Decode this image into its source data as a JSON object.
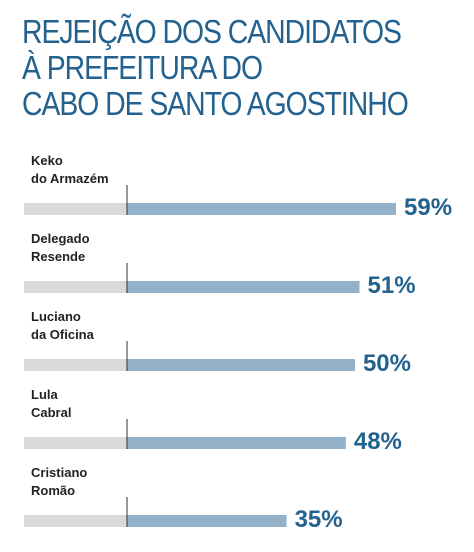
{
  "header": {
    "title_lines": [
      "REJEIÇÃO DOS CANDIDATOS",
      "À PREFEITURA DO",
      "CABO DE SANTO AGOSTINHO"
    ]
  },
  "colors": {
    "title": "#23628f",
    "bar": "#93b1c9",
    "track": "#d9d9db",
    "value_text": "#23628f",
    "label_text": "#222222"
  },
  "chart_data": {
    "type": "bar",
    "orientation": "horizontal",
    "title": "REJEIÇÃO DOS CANDIDATOS À PREFEITURA DO CABO DE SANTO AGOSTINHO",
    "categories": [
      [
        "Keko",
        "do Armazém"
      ],
      [
        "Delegado",
        "Resende"
      ],
      [
        "Luciano",
        "da Oficina"
      ],
      [
        "Lula",
        "Cabral"
      ],
      [
        "Cristiano",
        "Romão"
      ]
    ],
    "values": [
      59,
      51,
      50,
      48,
      35
    ],
    "value_labels": [
      "59%",
      "51%",
      "50%",
      "48%",
      "35%"
    ],
    "unit": "%",
    "xlim": [
      0,
      100
    ],
    "grid": false,
    "legend": "none"
  }
}
